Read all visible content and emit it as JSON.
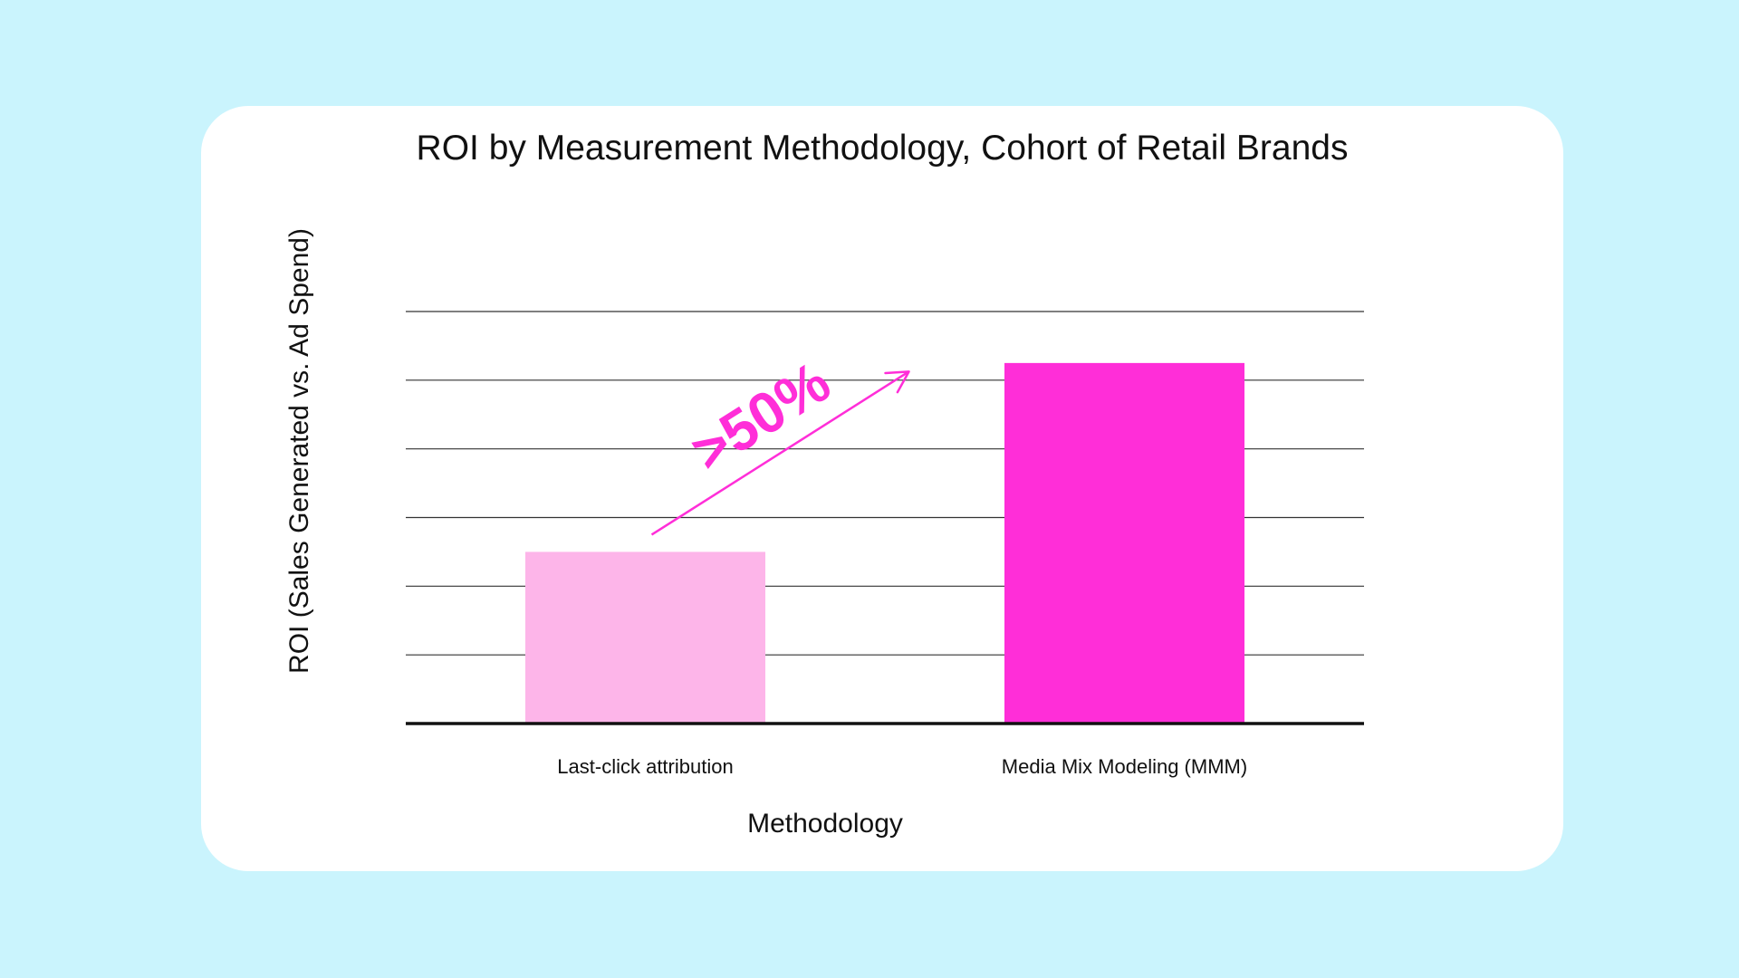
{
  "chart_data": {
    "type": "bar",
    "title": "ROI by Measurement Methodology, Cohort of Retail Brands",
    "xlabel": "Methodology",
    "ylabel": "ROI (Sales Generated vs. Ad Spend)",
    "categories": [
      "Last-click attribution",
      "Media Mix Modeling (MMM)"
    ],
    "values": [
      2,
      4.2
    ],
    "ylim": [
      0,
      4.8
    ],
    "grid": true,
    "legend": "none",
    "colors": [
      "#fdb5e9",
      "#ff2ed8"
    ],
    "annotation": {
      "text": ">50%",
      "color": "#ff2ed8",
      "from": {
        "category": "Last-click attribution",
        "value": 2.2
      },
      "to": {
        "category": "Media Mix Modeling (MMM)",
        "value": 4.1
      }
    }
  }
}
